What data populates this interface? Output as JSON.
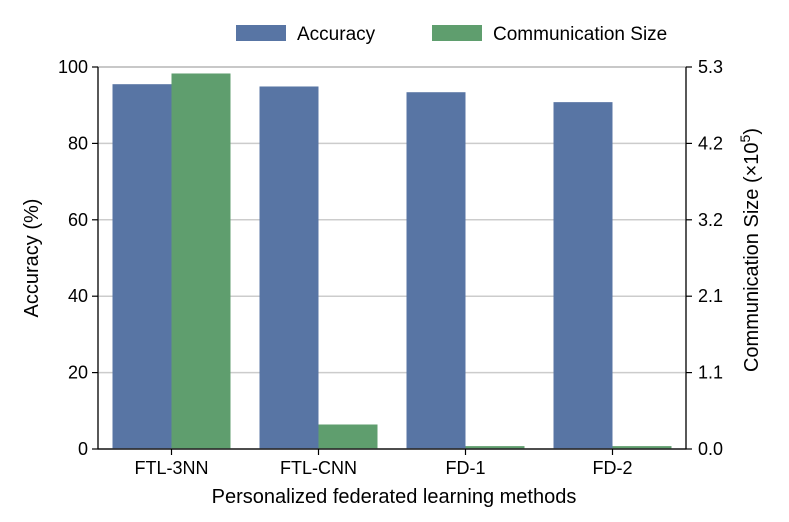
{
  "chart_data": {
    "type": "bar",
    "categories": [
      "FTL-3NN",
      "FTL-CNN",
      "FD-1",
      "FD-2"
    ],
    "xlabel": "Personalized federated learning methods",
    "ylabel": "Accuracy (%)",
    "y2label_prefix": "Communication Size (×10",
    "y2label_exp": "5",
    "y2label_suffix": ")",
    "ylim": [
      0,
      100
    ],
    "yticks": [
      "0",
      "20",
      "40",
      "60",
      "80",
      "100"
    ],
    "y2lim": [
      0.0,
      5.3
    ],
    "y2ticks": [
      "0.0",
      "1.1",
      "2.1",
      "3.2",
      "4.2",
      "5.3"
    ],
    "series": [
      {
        "name": "Accuracy",
        "axis": "left",
        "color": "#5875a4",
        "values": [
          95.5,
          94.9,
          93.4,
          90.8
        ]
      },
      {
        "name": "Communication Size",
        "axis": "right",
        "color": "#5f9e6e",
        "values": [
          5.21,
          0.34,
          0.04,
          0.04
        ]
      }
    ],
    "legend": "top",
    "grid": "horizontal"
  }
}
